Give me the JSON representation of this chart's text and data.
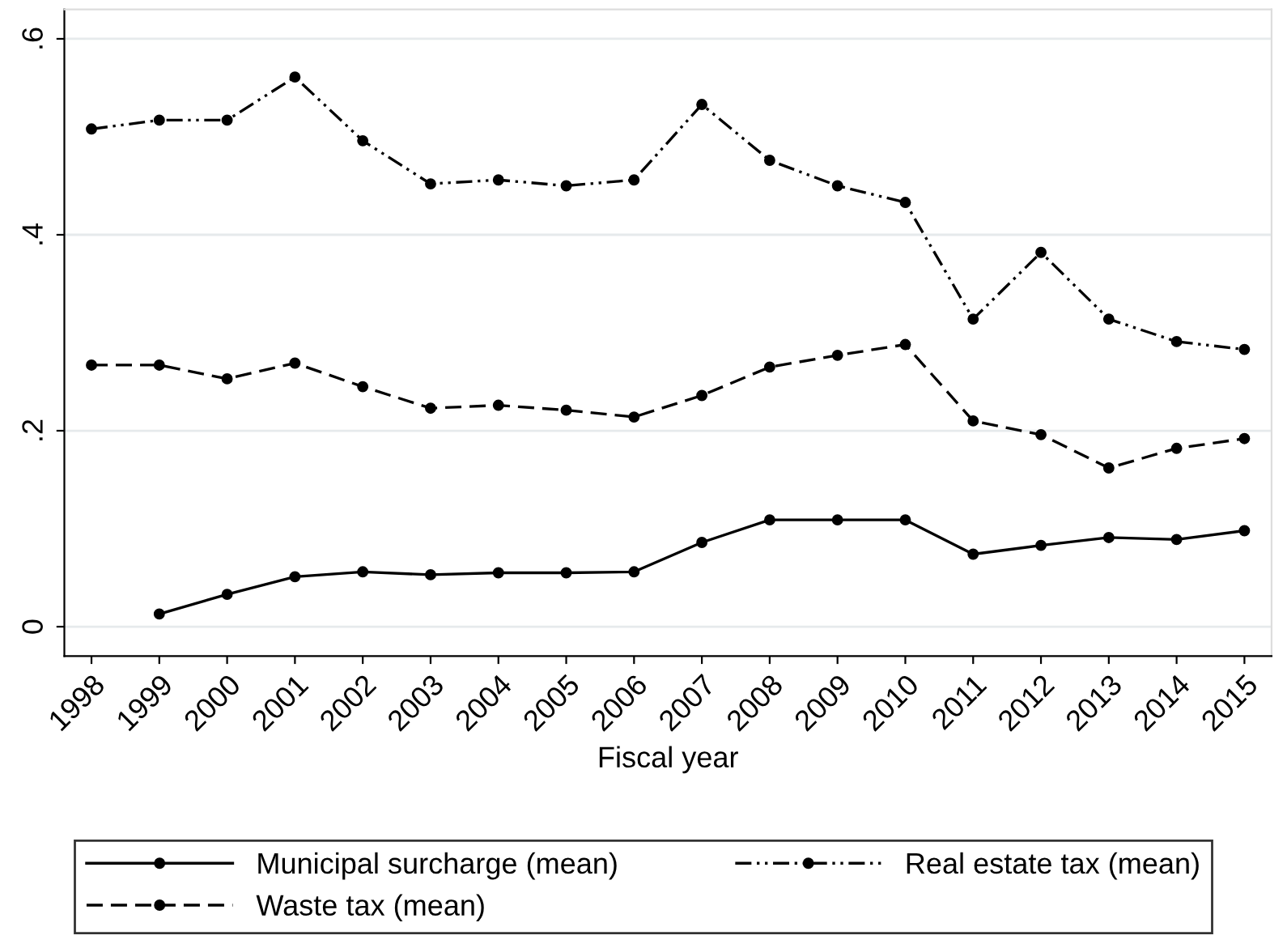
{
  "chart_data": {
    "type": "line",
    "xlabel": "Fiscal year",
    "categories": [
      "1998",
      "1999",
      "2000",
      "2001",
      "2002",
      "2003",
      "2004",
      "2005",
      "2006",
      "2007",
      "2008",
      "2009",
      "2010",
      "2011",
      "2012",
      "2013",
      "2014",
      "2015"
    ],
    "series": [
      {
        "name": "Municipal surcharge (mean)",
        "color": "#000000",
        "line_style": "solid",
        "values": [
          null,
          0.013,
          0.033,
          0.051,
          0.056,
          0.053,
          0.055,
          0.055,
          0.056,
          0.086,
          0.109,
          0.109,
          0.109,
          0.074,
          0.083,
          0.091,
          0.089,
          0.098
        ]
      },
      {
        "name": "Waste tax (mean)",
        "color": "#000000",
        "line_style": "dashed",
        "values": [
          0.267,
          0.267,
          0.253,
          0.269,
          0.245,
          0.223,
          0.226,
          0.221,
          0.214,
          0.236,
          0.265,
          0.277,
          0.288,
          0.21,
          0.196,
          0.162,
          0.182,
          0.192
        ]
      },
      {
        "name": "Real estate tax (mean)",
        "color": "#000000",
        "line_style": "dashdot",
        "values": [
          0.508,
          0.517,
          0.517,
          0.561,
          0.496,
          0.452,
          0.456,
          0.45,
          0.456,
          0.533,
          0.476,
          0.45,
          0.433,
          0.314,
          0.382,
          0.314,
          0.291,
          0.283
        ]
      }
    ],
    "ylim": [
      -0.03,
      0.63
    ],
    "yticks": [
      {
        "value": 0,
        "label": "0"
      },
      {
        "value": 0.2,
        "label": ".2"
      },
      {
        "value": 0.4,
        "label": ".4"
      },
      {
        "value": 0.6,
        "label": ".6"
      }
    ],
    "grid": "y",
    "legend": "bottom",
    "marker": "circle"
  }
}
